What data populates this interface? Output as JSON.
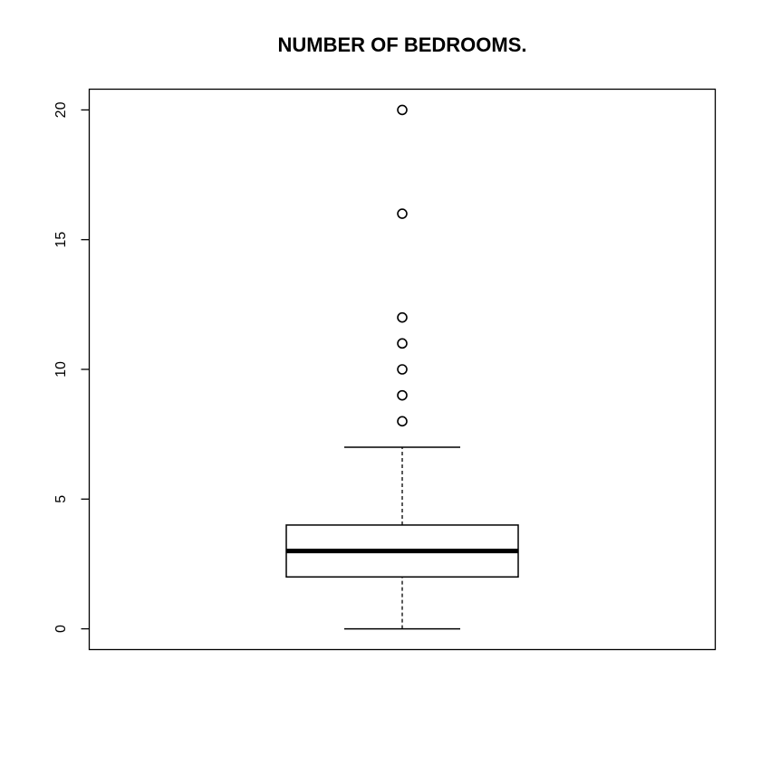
{
  "chart_data": {
    "type": "box",
    "title": "NUMBER OF BEDROOMS.",
    "xlabel": "",
    "ylabel": "",
    "ylim": [
      -0.8,
      20.8
    ],
    "y_ticks": [
      0,
      5,
      10,
      15,
      20
    ],
    "y_tick_labels": [
      "0",
      "5",
      "10",
      "15",
      "20"
    ],
    "grid": false,
    "legend": "none",
    "box": {
      "whisker_low": 0,
      "q1": 2,
      "median": 3,
      "q3": 4,
      "whisker_high": 7
    },
    "outliers": [
      8,
      9,
      10,
      11,
      12,
      16,
      20
    ],
    "colors": {
      "stroke": "#000000",
      "box_fill": "#ffffff",
      "background": "#ffffff"
    }
  }
}
